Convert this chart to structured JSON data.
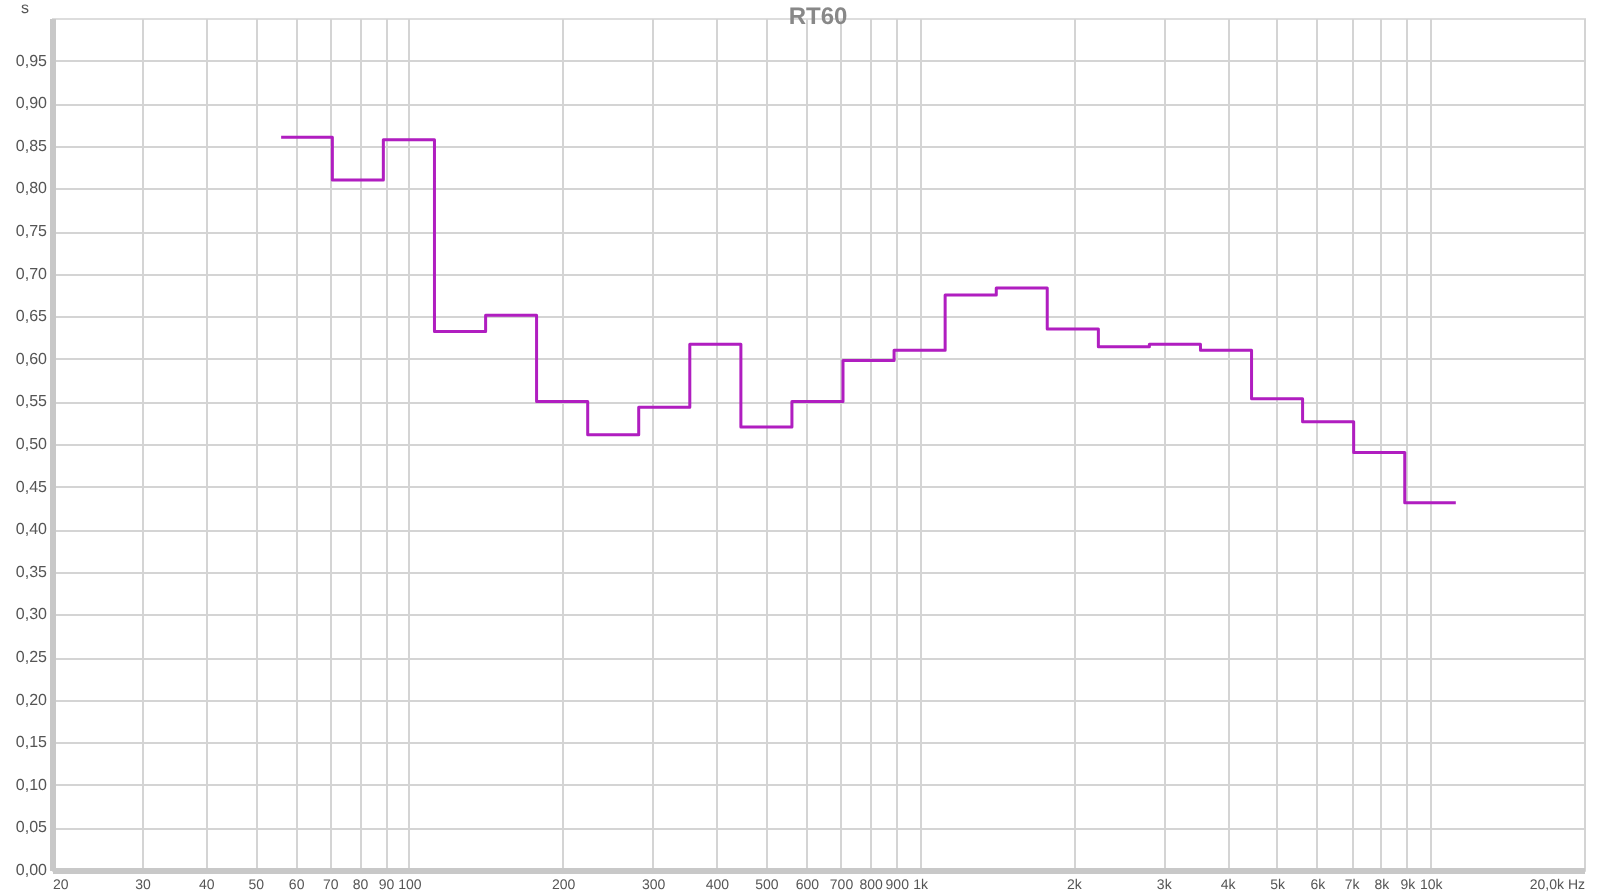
{
  "chart_data": {
    "type": "step",
    "title": "RT60",
    "ylabel": "s",
    "log": "x",
    "grid": true,
    "line_style": "solid",
    "marker": "none",
    "x": [
      56.2,
      70.8,
      89.1,
      112.2,
      141.3,
      177.8,
      223.9,
      281.8,
      354.8,
      446.7,
      562.3,
      707.9,
      891.3,
      1122,
      1413,
      1778,
      2239,
      2818,
      3548,
      4467,
      5623,
      7079,
      8913,
      11220
    ],
    "series": [
      {
        "color": "#b01ec0",
        "values": [
          0.86,
          0.81,
          0.857,
          0.632,
          0.651,
          0.55,
          0.511,
          0.543,
          0.617,
          0.52,
          0.55,
          0.598,
          0.61,
          0.675,
          0.683,
          0.635,
          0.614,
          0.617,
          0.61,
          0.553,
          0.526,
          0.49,
          0.431,
          0.431
        ]
      }
    ],
    "xlim": [
      20,
      20000
    ],
    "xticks": [
      20,
      30,
      40,
      50,
      60,
      70,
      80,
      90,
      100,
      200,
      300,
      400,
      500,
      600,
      700,
      800,
      900,
      {
        "value": 1000,
        "label": "1k"
      },
      {
        "value": 2000,
        "label": "2k"
      },
      {
        "value": 3000,
        "label": "3k"
      },
      {
        "value": 4000,
        "label": "4k"
      },
      {
        "value": 5000,
        "label": "5k"
      },
      {
        "value": 6000,
        "label": "6k"
      },
      {
        "value": 7000,
        "label": "7k"
      },
      {
        "value": 8000,
        "label": "8k"
      },
      {
        "value": 9000,
        "label": "9k"
      },
      {
        "value": 10000,
        "label": "10k"
      },
      {
        "value": 20000,
        "label": "20,0k Hz"
      }
    ],
    "ylim": [
      0,
      1.0
    ],
    "yticks": [
      {
        "value": 0,
        "label": "0,00"
      },
      {
        "value": 0.05,
        "label": "0,05"
      },
      {
        "value": 0.1,
        "label": "0,10"
      },
      {
        "value": 0.15,
        "label": "0,15"
      },
      {
        "value": 0.2,
        "label": "0,20"
      },
      {
        "value": 0.25,
        "label": "0,25"
      },
      {
        "value": 0.3,
        "label": "0,30"
      },
      {
        "value": 0.35,
        "label": "0,35"
      },
      {
        "value": 0.4,
        "label": "0,40"
      },
      {
        "value": 0.45,
        "label": "0,45"
      },
      {
        "value": 0.5,
        "label": "0,50"
      },
      {
        "value": 0.55,
        "label": "0,55"
      },
      {
        "value": 0.6,
        "label": "0,60"
      },
      {
        "value": 0.65,
        "label": "0,65"
      },
      {
        "value": 0.7,
        "label": "0,70"
      },
      {
        "value": 0.75,
        "label": "0,75"
      },
      {
        "value": 0.8,
        "label": "0,80"
      },
      {
        "value": 0.85,
        "label": "0,85"
      },
      {
        "value": 0.9,
        "label": "0,90"
      },
      {
        "value": 0.95,
        "label": "0,95"
      }
    ]
  }
}
